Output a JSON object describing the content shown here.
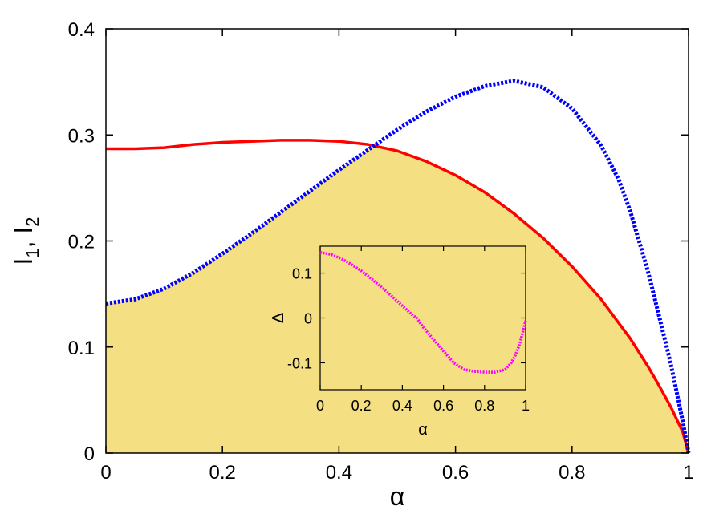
{
  "chart_data": [
    {
      "type": "line",
      "xlabel": "α",
      "ylabel_main": "I",
      "ylabel_sub1": "1",
      "ylabel_sep": ", I",
      "ylabel_sub2": "2",
      "xlim": [
        0,
        1
      ],
      "ylim": [
        0,
        0.4
      ],
      "xticks": [
        0,
        0.2,
        0.4,
        0.6,
        0.8,
        1
      ],
      "xtick_labels": [
        "0",
        "0.2",
        "0.4",
        "0.6",
        "0.8",
        "1"
      ],
      "yticks": [
        0,
        0.1,
        0.2,
        0.3,
        0.4
      ],
      "ytick_labels": [
        "0",
        "0.1",
        "0.2",
        "0.3",
        "0.4"
      ],
      "grid": false,
      "fill_under": "min of both series",
      "colors": {
        "series1": "#ff0000",
        "series2": "#0000ff",
        "fill": "#f4df82"
      },
      "series": [
        {
          "line": "solid",
          "color": "#ff0000",
          "x": [
            0,
            0.05,
            0.1,
            0.15,
            0.2,
            0.25,
            0.3,
            0.35,
            0.4,
            0.45,
            0.5,
            0.55,
            0.6,
            0.65,
            0.7,
            0.75,
            0.8,
            0.85,
            0.9,
            0.93,
            0.95,
            0.97,
            0.99,
            1.0
          ],
          "y": [
            0.287,
            0.287,
            0.288,
            0.291,
            0.293,
            0.294,
            0.295,
            0.295,
            0.294,
            0.291,
            0.285,
            0.275,
            0.262,
            0.246,
            0.226,
            0.203,
            0.176,
            0.145,
            0.108,
            0.082,
            0.063,
            0.043,
            0.02,
            0.0
          ]
        },
        {
          "line": "dotted",
          "color": "#0000ff",
          "x": [
            0,
            0.05,
            0.1,
            0.15,
            0.2,
            0.25,
            0.3,
            0.35,
            0.4,
            0.45,
            0.5,
            0.55,
            0.6,
            0.65,
            0.7,
            0.75,
            0.8,
            0.85,
            0.88,
            0.9,
            0.93,
            0.95,
            0.97,
            0.99,
            1.0
          ],
          "y": [
            0.141,
            0.145,
            0.155,
            0.17,
            0.188,
            0.207,
            0.227,
            0.247,
            0.267,
            0.286,
            0.305,
            0.322,
            0.336,
            0.346,
            0.351,
            0.345,
            0.325,
            0.29,
            0.258,
            0.228,
            0.172,
            0.128,
            0.083,
            0.03,
            0.0
          ]
        }
      ]
    },
    {
      "type": "line",
      "inset": true,
      "xlabel": "α",
      "ylabel": "Δ",
      "xlim": [
        0,
        1
      ],
      "ylim": [
        -0.16,
        0.16
      ],
      "xticks": [
        0,
        0.2,
        0.4,
        0.6,
        0.8,
        1
      ],
      "xtick_labels": [
        "0",
        "0.2",
        "0.4",
        "0.6",
        "0.8",
        "1"
      ],
      "yticks": [
        -0.1,
        0,
        0.1
      ],
      "ytick_labels": [
        "-0.1",
        "0",
        "0.1"
      ],
      "zero_line": true,
      "grid": false,
      "colors": {
        "series1": "#ff00ff",
        "zero": "#808080"
      },
      "series": [
        {
          "line": "dotted",
          "color": "#ff00ff",
          "x": [
            0,
            0.05,
            0.1,
            0.15,
            0.2,
            0.25,
            0.3,
            0.35,
            0.4,
            0.45,
            0.47,
            0.5,
            0.55,
            0.6,
            0.65,
            0.7,
            0.75,
            0.8,
            0.85,
            0.9,
            0.93,
            0.95,
            0.97,
            0.99,
            1.0
          ],
          "y": [
            0.146,
            0.142,
            0.133,
            0.12,
            0.105,
            0.087,
            0.068,
            0.048,
            0.027,
            0.006,
            0.0,
            -0.02,
            -0.047,
            -0.074,
            -0.1,
            -0.115,
            -0.119,
            -0.121,
            -0.121,
            -0.115,
            -0.1,
            -0.083,
            -0.06,
            -0.025,
            -0.006
          ]
        }
      ]
    }
  ]
}
